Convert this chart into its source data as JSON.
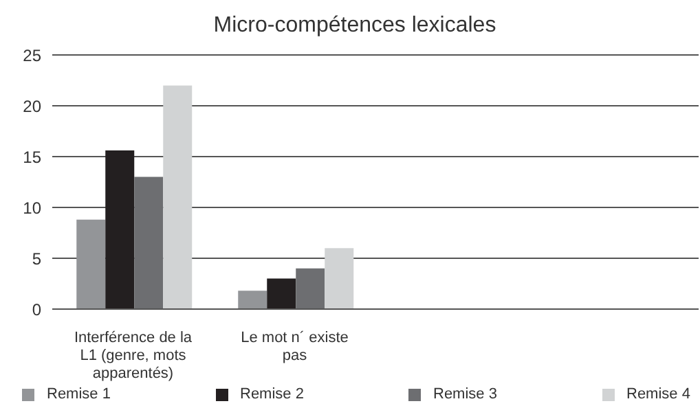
{
  "chart_data": {
    "type": "bar",
    "title": "Micro-compétences lexicales",
    "categories": [
      "Interférence de la L1 (genre, mots apparentés)",
      "Le mot n´ existe pas",
      null,
      null
    ],
    "series": [
      {
        "name": "Remise 1",
        "color": "#939598",
        "values": [
          8.8,
          1.8,
          null,
          null
        ]
      },
      {
        "name": "Remise 2",
        "color": "#231f20",
        "values": [
          15.6,
          3,
          null,
          null
        ]
      },
      {
        "name": "Remise 3",
        "color": "#6d6e71",
        "values": [
          13,
          4,
          null,
          null
        ]
      },
      {
        "name": "Remise 4",
        "color": "#d1d3d4",
        "values": [
          22,
          6,
          null,
          null
        ]
      }
    ],
    "ylim": [
      0,
      25
    ],
    "yticks": [
      0,
      5,
      10,
      15,
      20,
      25
    ],
    "grid": "y",
    "legend": "bottom"
  }
}
